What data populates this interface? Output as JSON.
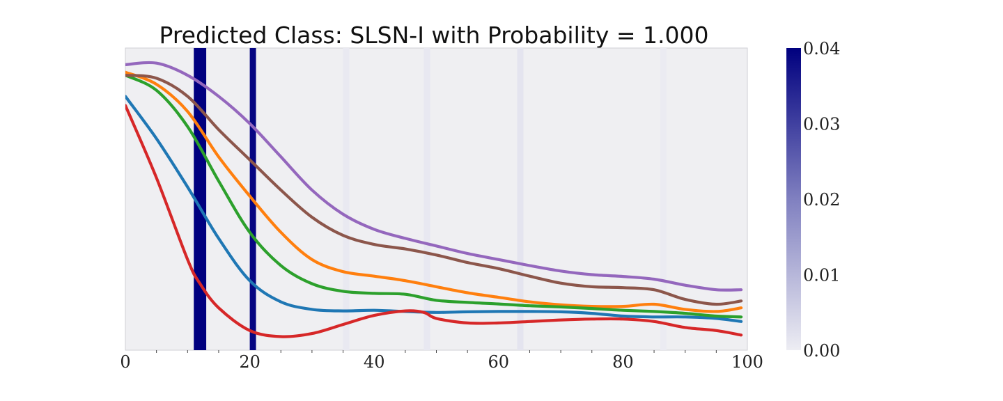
{
  "chart_data": {
    "type": "line",
    "title": "Predicted Class: SLSN-I with Probability = 1.000",
    "xlabel": "",
    "ylabel": "",
    "xlim": [
      0,
      100
    ],
    "xticks": [
      "0",
      "20",
      "40",
      "60",
      "80",
      "100"
    ],
    "xtick_values": [
      0,
      20,
      40,
      60,
      80,
      100
    ],
    "ylim": [
      0,
      1
    ],
    "grid": false,
    "legend": "none",
    "colors": {
      "background": "#efeff2",
      "attention_max": "#00007f",
      "attention_min": "#ededf3"
    },
    "attention": {
      "bins": [
        {
          "x0": 11.0,
          "x1": 13.0,
          "value": 0.04
        },
        {
          "x0": 20.0,
          "x1": 21.0,
          "value": 0.039
        },
        {
          "x0": 35.0,
          "x1": 36.0,
          "value": 0.0006
        },
        {
          "x0": 48.0,
          "x1": 49.0,
          "value": 0.0008
        },
        {
          "x0": 63.0,
          "x1": 64.0,
          "value": 0.0015
        },
        {
          "x0": 86.0,
          "x1": 87.0,
          "value": 0.0004
        }
      ]
    },
    "colorbar": {
      "range": [
        0.0,
        0.04
      ],
      "ticks": [
        "0.00",
        "0.01",
        "0.02",
        "0.03",
        "0.04"
      ],
      "tick_values": [
        0.0,
        0.01,
        0.02,
        0.03,
        0.04
      ]
    },
    "series": [
      {
        "color": "#1f77b4",
        "x": [
          0,
          5,
          10,
          15,
          20,
          25,
          30,
          35,
          40,
          45,
          50,
          55,
          60,
          65,
          70,
          75,
          80,
          85,
          90,
          95,
          99
        ],
        "y": [
          0.84,
          0.7,
          0.54,
          0.37,
          0.23,
          0.16,
          0.135,
          0.13,
          0.132,
          0.128,
          0.125,
          0.127,
          0.128,
          0.128,
          0.127,
          0.122,
          0.113,
          0.11,
          0.11,
          0.105,
          0.095
        ]
      },
      {
        "color": "#ff7f0e",
        "x": [
          0,
          5,
          10,
          15,
          20,
          25,
          30,
          35,
          40,
          45,
          50,
          55,
          60,
          65,
          70,
          75,
          80,
          85,
          90,
          95,
          99
        ],
        "y": [
          0.92,
          0.88,
          0.79,
          0.64,
          0.51,
          0.39,
          0.3,
          0.26,
          0.245,
          0.23,
          0.21,
          0.19,
          0.175,
          0.16,
          0.15,
          0.145,
          0.145,
          0.152,
          0.135,
          0.128,
          0.14
        ]
      },
      {
        "color": "#2ca02c",
        "x": [
          0,
          5,
          10,
          15,
          20,
          25,
          30,
          35,
          40,
          45,
          50,
          55,
          60,
          65,
          70,
          75,
          80,
          85,
          90,
          95,
          99
        ],
        "y": [
          0.91,
          0.86,
          0.74,
          0.56,
          0.39,
          0.28,
          0.22,
          0.195,
          0.188,
          0.185,
          0.165,
          0.158,
          0.153,
          0.147,
          0.143,
          0.138,
          0.132,
          0.128,
          0.122,
          0.113,
          0.11
        ]
      },
      {
        "color": "#d62728",
        "x": [
          0,
          5,
          10,
          12,
          15,
          20,
          25,
          30,
          35,
          40,
          45,
          48,
          50,
          55,
          60,
          65,
          70,
          75,
          80,
          85,
          90,
          95,
          99
        ],
        "y": [
          0.81,
          0.57,
          0.3,
          0.22,
          0.14,
          0.065,
          0.045,
          0.055,
          0.085,
          0.115,
          0.13,
          0.125,
          0.105,
          0.09,
          0.09,
          0.095,
          0.1,
          0.103,
          0.103,
          0.095,
          0.075,
          0.065,
          0.05
        ]
      },
      {
        "color": "#9467bd",
        "x": [
          0,
          5,
          10,
          15,
          20,
          25,
          30,
          35,
          40,
          45,
          50,
          55,
          60,
          65,
          70,
          75,
          80,
          85,
          90,
          95,
          99
        ],
        "y": [
          0.945,
          0.95,
          0.91,
          0.84,
          0.75,
          0.64,
          0.53,
          0.45,
          0.4,
          0.37,
          0.345,
          0.32,
          0.3,
          0.28,
          0.262,
          0.25,
          0.244,
          0.235,
          0.215,
          0.2,
          0.2
        ]
      },
      {
        "color": "#8c564b",
        "x": [
          0,
          5,
          10,
          15,
          20,
          25,
          30,
          35,
          40,
          45,
          50,
          55,
          60,
          65,
          70,
          75,
          80,
          85,
          90,
          95,
          99
        ],
        "y": [
          0.91,
          0.9,
          0.84,
          0.73,
          0.63,
          0.53,
          0.44,
          0.38,
          0.35,
          0.335,
          0.315,
          0.29,
          0.27,
          0.245,
          0.222,
          0.21,
          0.207,
          0.2,
          0.168,
          0.152,
          0.163
        ]
      }
    ]
  }
}
